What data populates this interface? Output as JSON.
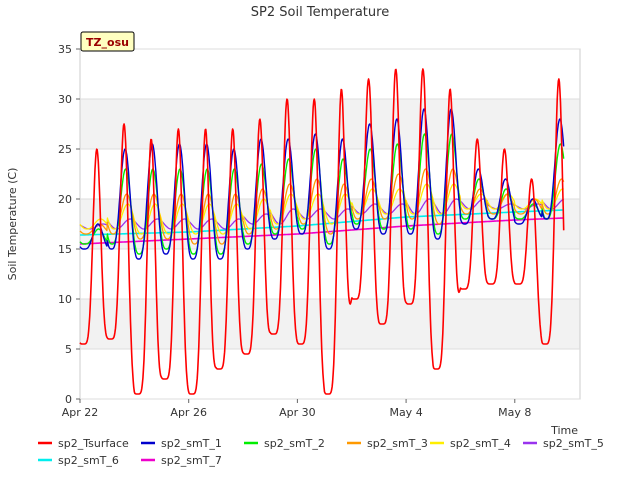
{
  "chart_data": {
    "type": "line",
    "title": "SP2 Soil Temperature",
    "xlabel": "Time",
    "ylabel": "Soil Temperature (C)",
    "annotation": "TZ_osu",
    "xlim": [
      0,
      18.4
    ],
    "ylim": [
      0,
      35
    ],
    "xticks": [
      {
        "day": 0,
        "label": "Apr 22"
      },
      {
        "day": 4,
        "label": "Apr 26"
      },
      {
        "day": 8,
        "label": "Apr 30"
      },
      {
        "day": 12,
        "label": "May 4"
      },
      {
        "day": 16,
        "label": "May 8"
      }
    ],
    "yticks": [
      0,
      5,
      10,
      15,
      20,
      25,
      30,
      35
    ],
    "bands": [
      [
        5,
        10
      ],
      [
        15,
        20
      ],
      [
        25,
        30
      ]
    ],
    "day_axis": {
      "start": 0,
      "count": 18,
      "end": 17.8,
      "phase": 0.55
    },
    "series": [
      {
        "name": "sp2_Tsurface",
        "color": "#ff0000",
        "width": 1.6,
        "kind": "diurnal",
        "peak_phase": 0.62,
        "sharp": 2.5,
        "mins": [
          5.5,
          6.0,
          0.5,
          2.0,
          0.5,
          3.0,
          4.5,
          6.5,
          5.5,
          0.5,
          10.0,
          7.5,
          9.5,
          3.0,
          11.0,
          11.5,
          11.5,
          5.5
        ],
        "maxs": [
          25.0,
          27.5,
          26.0,
          27.0,
          27.0,
          27.0,
          28.0,
          30.0,
          30.0,
          31.0,
          32.0,
          33.0,
          33.0,
          31.0,
          26.0,
          25.0,
          22.0,
          32.0
        ]
      },
      {
        "name": "sp2_smT_1",
        "color": "#0000cc",
        "width": 1.4,
        "kind": "diurnal",
        "peak_phase": 0.66,
        "sharp": 1.6,
        "mins": [
          15.0,
          15.0,
          14.0,
          14.5,
          14.0,
          14.0,
          15.0,
          16.0,
          16.5,
          15.0,
          17.0,
          16.5,
          16.5,
          16.0,
          17.5,
          18.0,
          17.5,
          18.0
        ],
        "maxs": [
          17.5,
          25.0,
          25.5,
          25.5,
          25.5,
          25.0,
          26.0,
          26.0,
          26.5,
          26.0,
          27.5,
          28.0,
          29.0,
          29.0,
          23.0,
          22.0,
          20.0,
          28.0
        ]
      },
      {
        "name": "sp2_smT_2",
        "color": "#00ee00",
        "width": 1.4,
        "kind": "diurnal",
        "peak_phase": 0.68,
        "sharp": 1.5,
        "mins": [
          15.5,
          15.5,
          14.5,
          15.0,
          14.5,
          14.5,
          15.5,
          16.5,
          17.0,
          15.5,
          17.5,
          17.0,
          17.0,
          16.5,
          18.0,
          18.0,
          18.0,
          18.0
        ],
        "maxs": [
          17.0,
          23.0,
          23.0,
          23.0,
          23.0,
          23.0,
          23.5,
          24.0,
          25.0,
          24.0,
          25.0,
          25.5,
          26.5,
          26.5,
          22.0,
          21.0,
          19.5,
          25.5
        ]
      },
      {
        "name": "sp2_smT_3",
        "color": "#ff9900",
        "width": 1.3,
        "kind": "diurnal",
        "peak_phase": 0.72,
        "sharp": 1.3,
        "mins": [
          16.5,
          16.5,
          16.0,
          16.0,
          15.5,
          15.5,
          16.5,
          17.0,
          17.5,
          16.5,
          18.0,
          18.0,
          18.0,
          17.5,
          18.5,
          18.5,
          18.5,
          18.5
        ],
        "maxs": [
          17.5,
          20.5,
          20.5,
          20.5,
          20.5,
          20.5,
          21.0,
          21.5,
          22.0,
          21.5,
          22.0,
          22.5,
          23.0,
          23.0,
          21.0,
          20.5,
          20.0,
          22.0
        ]
      },
      {
        "name": "sp2_smT_4",
        "color": "#ffee00",
        "width": 1.3,
        "kind": "diurnal",
        "peak_phase": 0.76,
        "sharp": 1.2,
        "mins": [
          17.0,
          17.0,
          16.5,
          16.5,
          16.5,
          16.5,
          17.0,
          17.5,
          18.0,
          17.5,
          18.5,
          18.5,
          18.5,
          18.5,
          19.0,
          19.0,
          19.0,
          19.0
        ],
        "maxs": [
          18.0,
          19.5,
          19.5,
          19.5,
          19.5,
          19.5,
          20.0,
          20.5,
          20.5,
          20.5,
          21.0,
          21.0,
          21.5,
          21.5,
          20.5,
          20.5,
          20.0,
          21.0
        ]
      },
      {
        "name": "sp2_smT_5",
        "color": "#9933ee",
        "width": 1.3,
        "kind": "diurnal",
        "peak_phase": 0.85,
        "sharp": 1.0,
        "mins": [
          17.0,
          17.0,
          17.0,
          17.0,
          17.0,
          17.0,
          17.5,
          17.5,
          18.0,
          18.0,
          18.5,
          18.5,
          18.5,
          18.5,
          19.0,
          19.0,
          19.0,
          19.0
        ],
        "maxs": [
          17.5,
          18.0,
          18.0,
          18.0,
          18.0,
          18.0,
          18.5,
          19.0,
          19.0,
          19.0,
          19.5,
          19.5,
          20.0,
          20.0,
          20.0,
          19.5,
          19.5,
          20.0
        ]
      },
      {
        "name": "sp2_smT_6",
        "color": "#00eeee",
        "width": 1.6,
        "kind": "trend",
        "x": [
          0,
          4,
          8,
          12,
          16,
          17.8
        ],
        "y": [
          16.4,
          16.7,
          17.3,
          18.2,
          18.7,
          18.9
        ]
      },
      {
        "name": "sp2_smT_7",
        "color": "#ee00cc",
        "width": 1.6,
        "kind": "trend",
        "x": [
          0,
          4,
          8,
          12,
          16,
          17.8
        ],
        "y": [
          15.5,
          16.0,
          16.5,
          17.3,
          17.9,
          18.1
        ]
      }
    ]
  }
}
